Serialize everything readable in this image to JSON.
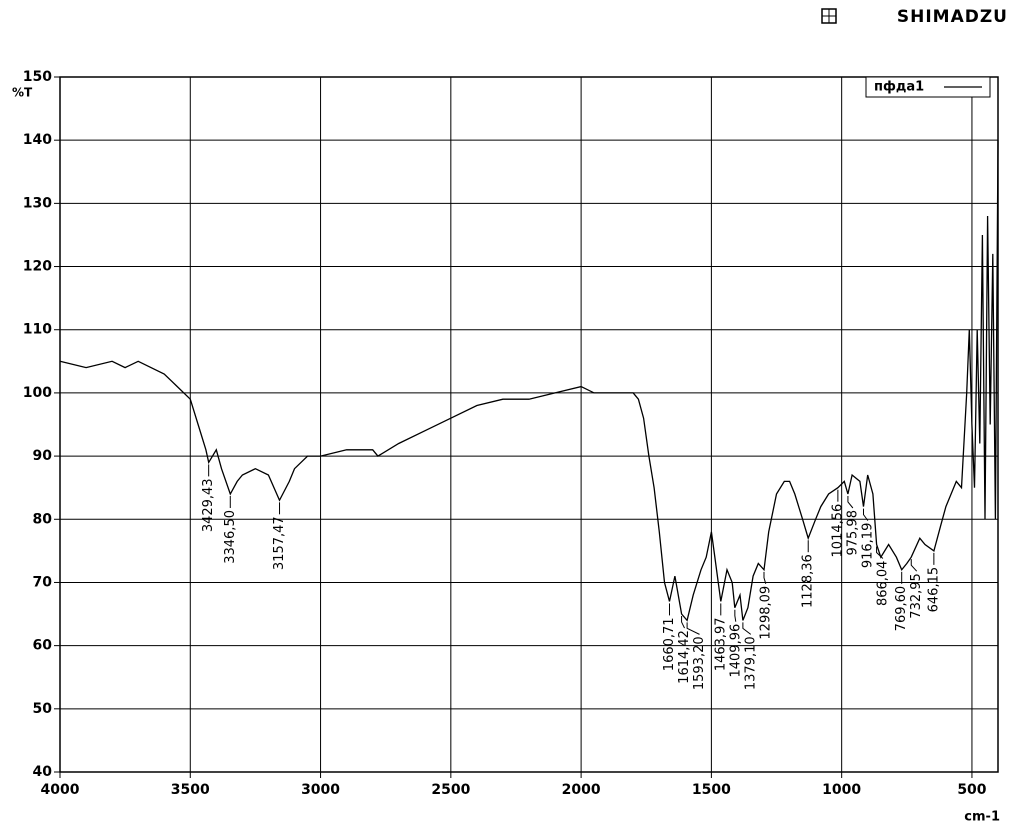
{
  "brand": "SHIMADZU",
  "chart_data": {
    "type": "line",
    "y_label": "%T",
    "x_label": "cm-1",
    "xlim": [
      4000,
      400
    ],
    "ylim": [
      40,
      150
    ],
    "xticks": [
      4000,
      3500,
      3000,
      2500,
      2000,
      1500,
      1000,
      500
    ],
    "yticks": [
      40,
      50,
      60,
      70,
      80,
      90,
      100,
      110,
      120,
      130,
      140,
      150
    ],
    "grid": true,
    "legend": "top-right",
    "x": [
      4000,
      3900,
      3800,
      3750,
      3700,
      3600,
      3550,
      3500,
      3470,
      3440,
      3429.43,
      3400,
      3380,
      3346.5,
      3320,
      3300,
      3250,
      3200,
      3157.47,
      3120,
      3100,
      3050,
      3000,
      2900,
      2800,
      2780,
      2700,
      2600,
      2500,
      2400,
      2300,
      2200,
      2100,
      2000,
      1950,
      1900,
      1800,
      1780,
      1760,
      1740,
      1720,
      1700,
      1680,
      1660.71,
      1640,
      1614.42,
      1593.2,
      1570,
      1540,
      1520,
      1500,
      1490,
      1463.97,
      1440,
      1420,
      1409.96,
      1390,
      1379.1,
      1360,
      1340,
      1320,
      1298.09,
      1280,
      1250,
      1220,
      1200,
      1180,
      1150,
      1128.36,
      1100,
      1080,
      1050,
      1014.56,
      990,
      975.98,
      960,
      930,
      916.19,
      900,
      880,
      866.04,
      850,
      820,
      790,
      769.6,
      750,
      732.95,
      700,
      680,
      646.15,
      620,
      600,
      580,
      560,
      540,
      520,
      510,
      500,
      490,
      480,
      470,
      460,
      450,
      440,
      430,
      420,
      410,
      400
    ],
    "series": [
      {
        "name": "пфда1",
        "color": "#000000",
        "values": [
          105,
          104,
          105,
          104,
          105,
          103,
          101,
          99,
          95,
          91,
          89,
          91,
          88,
          84,
          86,
          87,
          88,
          87,
          83,
          86,
          88,
          90,
          90,
          91,
          91,
          90,
          92,
          94,
          96,
          98,
          99,
          99,
          100,
          101,
          100,
          100,
          100,
          99,
          96,
          90,
          85,
          78,
          70,
          67,
          71,
          65,
          64,
          68,
          72,
          74,
          78,
          75,
          67,
          72,
          70,
          66,
          68,
          64,
          66,
          71,
          73,
          72,
          78,
          84,
          86,
          86,
          84,
          80,
          77,
          80,
          82,
          84,
          85,
          86,
          84,
          87,
          86,
          82,
          87,
          84,
          76,
          74,
          76,
          74,
          72,
          73,
          74,
          77,
          76,
          75,
          79,
          82,
          84,
          86,
          85,
          100,
          110,
          95,
          85,
          110,
          92,
          125,
          80,
          128,
          95,
          122,
          80,
          140
        ]
      }
    ],
    "annotations": [
      {
        "value": 3429.43,
        "label": "3429,43"
      },
      {
        "value": 3346.5,
        "label": "3346,50"
      },
      {
        "value": 3157.47,
        "label": "3157,47"
      },
      {
        "value": 1660.71,
        "label": "1660,71"
      },
      {
        "value": 1614.42,
        "label": "1614,42"
      },
      {
        "value": 1593.2,
        "label": "1593,20"
      },
      {
        "value": 1463.97,
        "label": "1463,97"
      },
      {
        "value": 1409.96,
        "label": "1409,96"
      },
      {
        "value": 1379.1,
        "label": "1379,10"
      },
      {
        "value": 1298.09,
        "label": "1298,09"
      },
      {
        "value": 1128.36,
        "label": "1128,36"
      },
      {
        "value": 1014.56,
        "label": "1014,56"
      },
      {
        "value": 975.98,
        "label": "975,98"
      },
      {
        "value": 916.19,
        "label": "916,19"
      },
      {
        "value": 866.04,
        "label": "866,04"
      },
      {
        "value": 769.6,
        "label": "769,60"
      },
      {
        "value": 732.95,
        "label": "732,95"
      },
      {
        "value": 646.15,
        "label": "646,15"
      }
    ]
  }
}
